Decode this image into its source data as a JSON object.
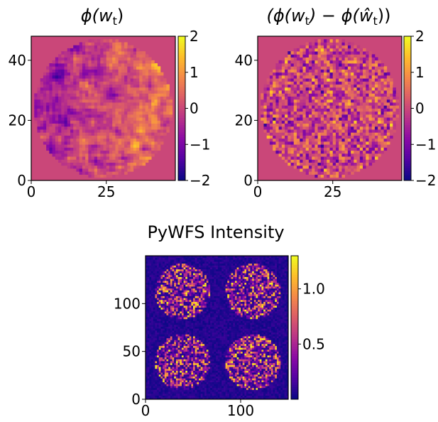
{
  "chart_data": [
    {
      "type": "heatmap",
      "title": "ϕ(w_t)",
      "title_parts": [
        "ϕ(w",
        "t",
        ")"
      ],
      "colormap": "plasma",
      "mask": "circular pupil",
      "background_value": 0.0,
      "grid_size": [
        48,
        48
      ],
      "xlim": [
        0,
        48
      ],
      "ylim": [
        0,
        48
      ],
      "x_ticks": [
        0,
        25
      ],
      "y_ticks": [
        0,
        20,
        40
      ],
      "x_tick_labels": [
        "0",
        "25"
      ],
      "y_tick_labels": [
        "0",
        "20",
        "40"
      ],
      "colorbar": {
        "range": [
          -2,
          2
        ],
        "ticks": [
          2,
          1,
          0,
          -1,
          -2
        ],
        "tick_labels": [
          "2",
          "1",
          "0",
          "−1",
          "−2"
        ]
      },
      "grid": false
    },
    {
      "type": "heatmap",
      "title": "(ϕ(w_t) − ϕ(ŵ_t))",
      "title_parts": [
        "(ϕ(w",
        "t",
        ") − ϕ(",
        "ŵ",
        "t",
        "))"
      ],
      "colormap": "plasma",
      "mask": "circular pupil",
      "background_value": 0.0,
      "grid_size": [
        48,
        48
      ],
      "xlim": [
        0,
        48
      ],
      "ylim": [
        0,
        48
      ],
      "x_ticks": [
        0,
        25
      ],
      "y_ticks": [
        0,
        20,
        40
      ],
      "x_tick_labels": [
        "0",
        "25"
      ],
      "y_tick_labels": [
        "0",
        "20",
        "40"
      ],
      "colorbar": {
        "range": [
          -2,
          2
        ],
        "ticks": [
          2,
          1,
          0,
          -1,
          -2
        ],
        "tick_labels": [
          "2",
          "1",
          "0",
          "−1",
          "−2"
        ]
      },
      "grid": false
    },
    {
      "type": "heatmap",
      "title": "PyWFS Intensity",
      "colormap": "plasma",
      "grid_size": [
        150,
        150
      ],
      "xlim": [
        0,
        150
      ],
      "ylim": [
        0,
        150
      ],
      "x_ticks": [
        0,
        100
      ],
      "y_ticks": [
        0,
        50,
        100
      ],
      "x_tick_labels": [
        "0",
        "100"
      ],
      "y_tick_labels": [
        "0",
        "50",
        "100"
      ],
      "pupil_images": 4,
      "colorbar": {
        "range": [
          0,
          1.3
        ],
        "ticks": [
          1.0,
          0.5
        ],
        "tick_labels": [
          "1.0",
          "0.5"
        ]
      },
      "grid": false
    }
  ]
}
